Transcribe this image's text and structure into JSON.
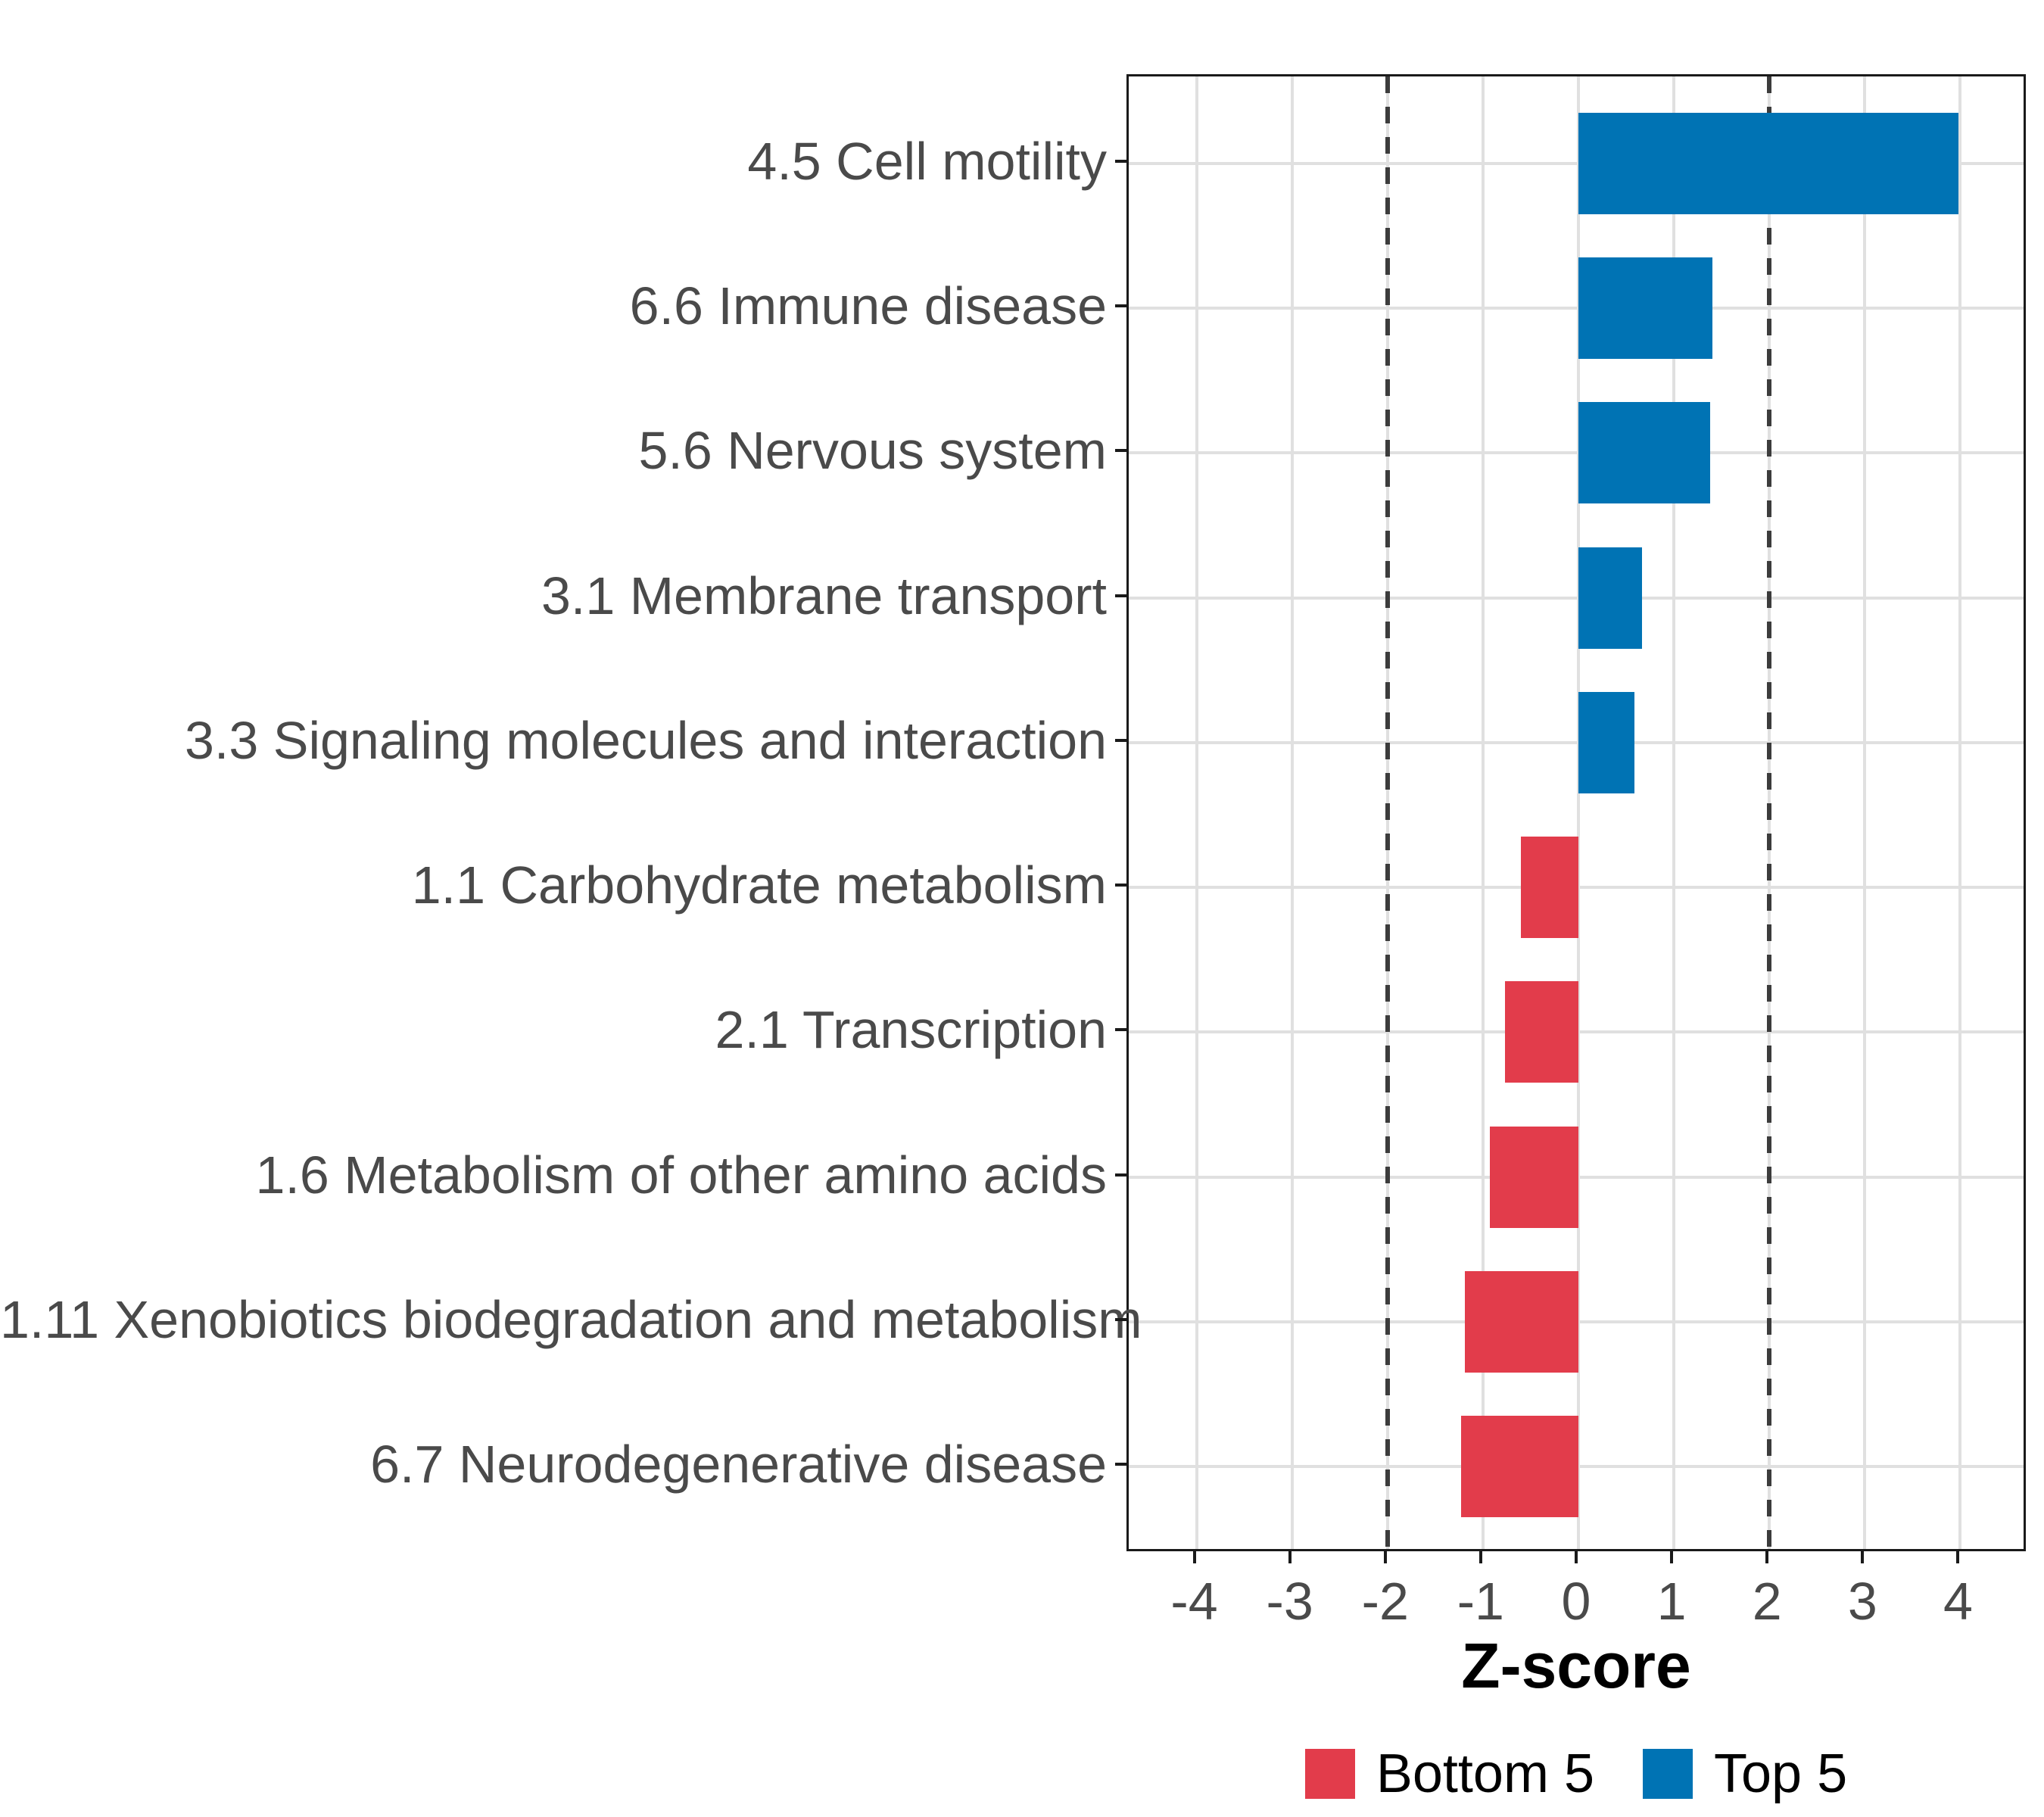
{
  "chart_data": {
    "type": "bar",
    "orientation": "horizontal",
    "title": "",
    "xlabel": "Z-score",
    "ylabel": "",
    "categories": [
      "4.5 Cell motility",
      "6.6 Immune disease",
      "5.6 Nervous system",
      "3.1 Membrane transport",
      "3.3 Signaling molecules and interaction",
      "1.1 Carbohydrate metabolism",
      "2.1 Transcription",
      "1.6 Metabolism of other amino acids",
      "1.11 Xenobiotics biodegradation and metabolism",
      "6.7 Neurodegenerative disease"
    ],
    "values": [
      3.98,
      1.4,
      1.38,
      0.67,
      0.59,
      -0.6,
      -0.77,
      -0.93,
      -1.19,
      -1.23
    ],
    "groups": [
      "Top 5",
      "Top 5",
      "Top 5",
      "Top 5",
      "Top 5",
      "Bottom 5",
      "Bottom 5",
      "Bottom 5",
      "Bottom 5",
      "Bottom 5"
    ],
    "x_ticks": [
      "-4",
      "-3",
      "-2",
      "-1",
      "0",
      "1",
      "2",
      "3",
      "4"
    ],
    "x_tick_values": [
      -4,
      -3,
      -2,
      -1,
      0,
      1,
      2,
      3,
      4
    ],
    "xlim": [
      -4.71,
      4.71
    ],
    "ref_lines": [
      -2,
      2
    ],
    "grid": true,
    "legend_position": "bottom"
  },
  "legend": {
    "items": [
      {
        "label": "Bottom 5",
        "color_key": "bottom5"
      },
      {
        "label": "Top 5",
        "color_key": "top5"
      }
    ]
  },
  "colors": {
    "top5": "#0073B4",
    "bottom5": "#E23C4B",
    "grid": "#E0E0E0",
    "ref_line": "#3C3C3C",
    "axis_text": "#4A4A4A",
    "axis_title": "#000000",
    "panel_border": "#1A1A1A",
    "background": "#FFFFFF"
  }
}
